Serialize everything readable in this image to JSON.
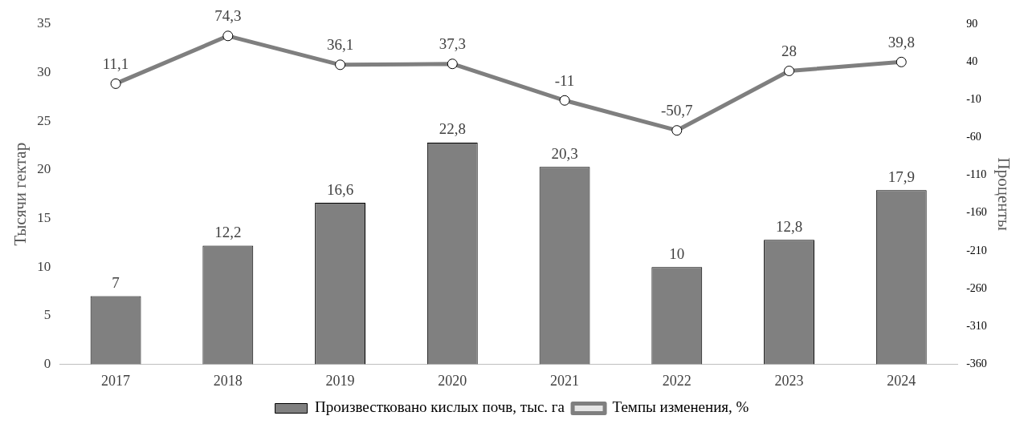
{
  "chart_data": {
    "type": "bar",
    "categories": [
      "2017",
      "2018",
      "2019",
      "2020",
      "2021",
      "2022",
      "2023",
      "2024"
    ],
    "series": [
      {
        "name": "Произвестковано кислых почв, тыс. га",
        "color": "#808080",
        "values": [
          7,
          12.2,
          16.6,
          22.8,
          20.3,
          10,
          12.8,
          17.9
        ],
        "value_labels": [
          "7",
          "12,2",
          "16,6",
          "22,8",
          "20,3",
          "10",
          "12,8",
          "17,9"
        ]
      },
      {
        "name": "Темпы изменения, %",
        "type": "line",
        "axis": "y2",
        "color": "#7f7f7f",
        "values": [
          11.1,
          74.3,
          36.1,
          37.3,
          -11,
          -50.7,
          28,
          39.8
        ],
        "value_labels": [
          "11,1",
          "74,3",
          "36,1",
          "37,3",
          "-11",
          "-50,7",
          "28",
          "39,8"
        ]
      }
    ],
    "ylabel": "Тысячи гектар",
    "y2label": "Проценты",
    "ylim": [
      0,
      35
    ],
    "yticks": [
      0,
      5,
      10,
      15,
      20,
      25,
      30,
      35
    ],
    "y2lim": [
      -360,
      90
    ],
    "y2ticks": [
      -360,
      -310,
      -260,
      -210,
      -160,
      -110,
      -60,
      -10,
      40,
      90
    ],
    "grid": false,
    "legend": "bottom",
    "marker": "circle",
    "line_style": "solid"
  }
}
